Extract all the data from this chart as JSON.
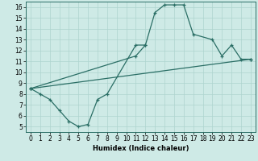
{
  "xlabel": "Humidex (Indice chaleur)",
  "bg_color": "#ceeae6",
  "line_color": "#2a6e65",
  "grid_color": "#aed4cf",
  "xlim": [
    -0.5,
    23.5
  ],
  "ylim": [
    4.5,
    16.5
  ],
  "xticks": [
    0,
    1,
    2,
    3,
    4,
    5,
    6,
    7,
    8,
    9,
    10,
    11,
    12,
    13,
    14,
    15,
    16,
    17,
    18,
    19,
    20,
    21,
    22,
    23
  ],
  "yticks": [
    5,
    6,
    7,
    8,
    9,
    10,
    11,
    12,
    13,
    14,
    15,
    16
  ],
  "curve1_x": [
    0,
    1,
    2,
    3,
    4,
    5,
    6,
    7,
    8,
    11,
    12
  ],
  "curve1_y": [
    8.5,
    8.0,
    7.5,
    6.5,
    5.5,
    5.0,
    5.2,
    7.5,
    8.0,
    12.5,
    12.5
  ],
  "curve2_x": [
    0,
    23
  ],
  "curve2_y": [
    8.5,
    11.2
  ],
  "curve3_x": [
    0,
    11,
    12,
    13,
    14,
    15,
    16,
    17,
    19,
    20,
    21,
    22,
    23
  ],
  "curve3_y": [
    8.5,
    11.5,
    12.5,
    15.5,
    16.2,
    16.2,
    16.2,
    13.5,
    13.0,
    11.5,
    12.5,
    11.2,
    11.2
  ],
  "tick_fontsize": 5.5,
  "xlabel_fontsize": 6.0,
  "linewidth": 0.9,
  "markersize": 3.5
}
